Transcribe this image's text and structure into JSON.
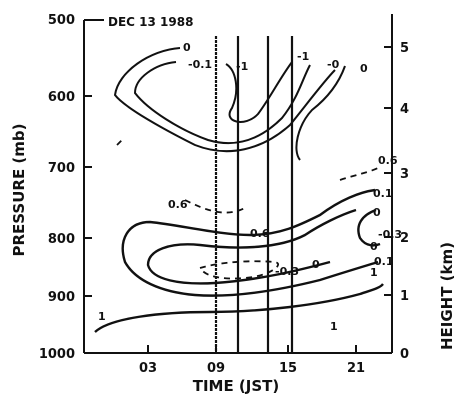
{
  "chart_data": {
    "type": "contour",
    "annotation": "DEC 13 1988",
    "xlabel": "TIME (JST)",
    "ylabel": "PRESSURE (mb)",
    "y2label": "HEIGHT (km)",
    "x_ticks": [
      "03",
      "09",
      "15",
      "21"
    ],
    "y_ticks": [
      "500",
      "600",
      "700",
      "800",
      "900",
      "1000"
    ],
    "y2_ticks": [
      "0",
      "1",
      "2",
      "3",
      "4",
      "5"
    ],
    "xlim": [
      -0.5,
      24
    ],
    "ylim_pressure": [
      1000,
      500
    ],
    "observation_times_hours": [
      8.5,
      9.5,
      12.5,
      14.5
    ],
    "contour_levels": [
      "0",
      "-0.1",
      "-1",
      "-1",
      "-0",
      "0",
      "0.6",
      "0.6",
      "0.6",
      "0.1",
      "0",
      "-0.3",
      "0",
      "0.1",
      "1",
      "0",
      "-0.3",
      "1",
      "1"
    ]
  }
}
